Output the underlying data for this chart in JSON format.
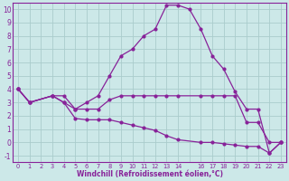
{
  "background_color": "#cce8e8",
  "grid_color": "#aacccc",
  "line_color": "#882299",
  "xlabel": "Windchill (Refroidissement éolien,°C)",
  "ylim": [
    -1.5,
    10.5
  ],
  "xlim": [
    -0.5,
    23.5
  ],
  "yticks": [
    -1,
    0,
    1,
    2,
    3,
    4,
    5,
    6,
    7,
    8,
    9,
    10
  ],
  "xtick_labels": [
    "0",
    "1",
    "2",
    "3",
    "4",
    "5",
    "6",
    "7",
    "8",
    "9",
    "10",
    "11",
    "12",
    "13",
    "14",
    "",
    "16",
    "17",
    "18",
    "19",
    "20",
    "21",
    "22",
    "23"
  ],
  "xtick_positions": [
    0,
    1,
    2,
    3,
    4,
    5,
    6,
    7,
    8,
    9,
    10,
    11,
    12,
    13,
    14,
    15,
    16,
    17,
    18,
    19,
    20,
    21,
    22,
    23
  ],
  "curves": [
    {
      "x": [
        0,
        1,
        3,
        4,
        5,
        6,
        7,
        8,
        9,
        10,
        11,
        12,
        13,
        14,
        15,
        16,
        17,
        18,
        19,
        20,
        21,
        22,
        23
      ],
      "y": [
        4.0,
        3.0,
        3.5,
        3.0,
        2.5,
        3.0,
        3.5,
        5.0,
        6.5,
        7.0,
        8.0,
        8.5,
        10.3,
        10.3,
        10.0,
        8.5,
        6.5,
        5.5,
        3.8,
        2.5,
        2.5,
        -0.8,
        0.0
      ]
    },
    {
      "x": [
        0,
        1,
        3,
        4,
        5,
        6,
        7,
        8,
        9,
        10,
        11,
        12,
        13,
        14,
        16,
        17,
        18,
        19,
        20,
        21,
        22,
        23
      ],
      "y": [
        4.0,
        3.0,
        3.5,
        3.5,
        2.5,
        2.5,
        2.5,
        3.2,
        3.5,
        3.5,
        3.5,
        3.5,
        3.5,
        3.5,
        3.5,
        3.5,
        3.5,
        3.5,
        1.5,
        1.5,
        0.0,
        0.0
      ]
    },
    {
      "x": [
        0,
        1,
        3,
        4,
        5,
        6,
        7,
        8,
        9,
        10,
        11,
        12,
        13,
        14,
        16,
        17,
        18,
        19,
        20,
        21,
        22,
        23
      ],
      "y": [
        4.0,
        3.0,
        3.5,
        3.0,
        1.8,
        1.7,
        1.7,
        1.7,
        1.5,
        1.3,
        1.1,
        0.9,
        0.5,
        0.2,
        0.0,
        0.0,
        -0.1,
        -0.2,
        -0.3,
        -0.3,
        -0.8,
        0.0
      ]
    }
  ]
}
